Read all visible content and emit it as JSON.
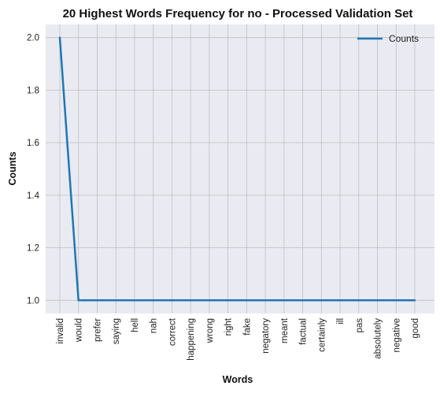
{
  "chart_data": {
    "type": "line",
    "title": "20 Highest Words Frequency for no - Processed Validation Set",
    "xlabel": "Words",
    "ylabel": "Counts",
    "categories": [
      "invalid",
      "would",
      "prefer",
      "saying",
      "hell",
      "nah",
      "correct",
      "happening",
      "wrong",
      "right",
      "fake",
      "negatory",
      "meant",
      "factual",
      "certainly",
      "ill",
      "pas",
      "absolutely",
      "negative",
      "good"
    ],
    "series": [
      {
        "name": "Counts",
        "values": [
          2,
          1,
          1,
          1,
          1,
          1,
          1,
          1,
          1,
          1,
          1,
          1,
          1,
          1,
          1,
          1,
          1,
          1,
          1,
          1
        ]
      }
    ],
    "yticks": [
      "1.0",
      "1.2",
      "1.4",
      "1.6",
      "1.8",
      "2.0"
    ],
    "ylim": [
      0.95,
      2.05
    ],
    "grid": true,
    "legend": "top-right",
    "colors": {
      "line": "#1f77b4",
      "plot_background": "#eaeaf2",
      "grid": "#c0c0c0"
    }
  }
}
